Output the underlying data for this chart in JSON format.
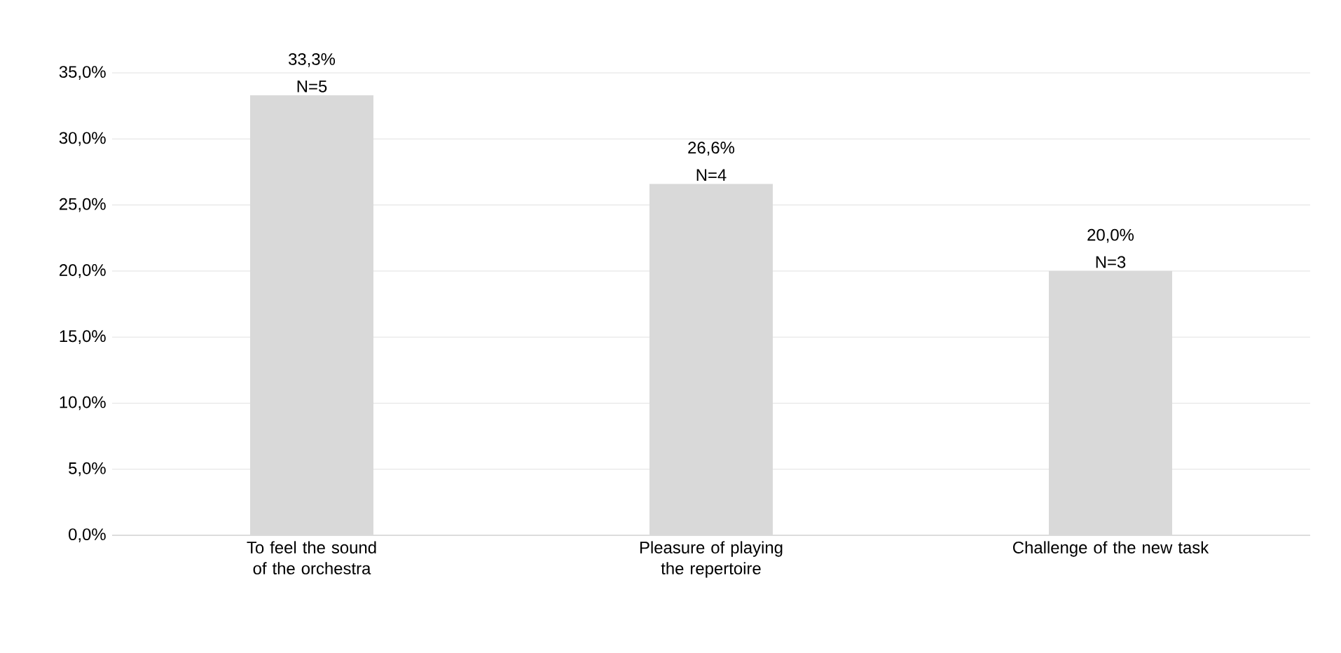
{
  "chart_data": {
    "type": "bar",
    "categories": [
      "To feel the sound of the orchestra",
      "Pleasure of playing the repertoire",
      "Challenge of the new task"
    ],
    "values": [
      33.3,
      26.6,
      20.0
    ],
    "value_labels": [
      "33,3%",
      "26,6%",
      "20,0%"
    ],
    "annotations": [
      {
        "text": "N=5",
        "x": "To feel the sound of the orchestra",
        "y": 33.3
      },
      {
        "text": "N=4",
        "x": "Pleasure of playing the repertoire",
        "y": 26.6
      },
      {
        "text": "N=3",
        "x": "Challenge of the new task",
        "y": 20.0
      }
    ],
    "color": "#d9d9d9",
    "ylim": [
      0,
      35
    ],
    "yticks": [
      {
        "value": 0,
        "label": "0,0%"
      },
      {
        "value": 5,
        "label": "5,0%"
      },
      {
        "value": 10,
        "label": "10,0%"
      },
      {
        "value": 15,
        "label": "15,0%"
      },
      {
        "value": 20,
        "label": "20,0%"
      },
      {
        "value": 25,
        "label": "25,0%"
      },
      {
        "value": 30,
        "label": "30,0%"
      },
      {
        "value": 35,
        "label": "35,0%"
      }
    ],
    "grid": "y"
  }
}
